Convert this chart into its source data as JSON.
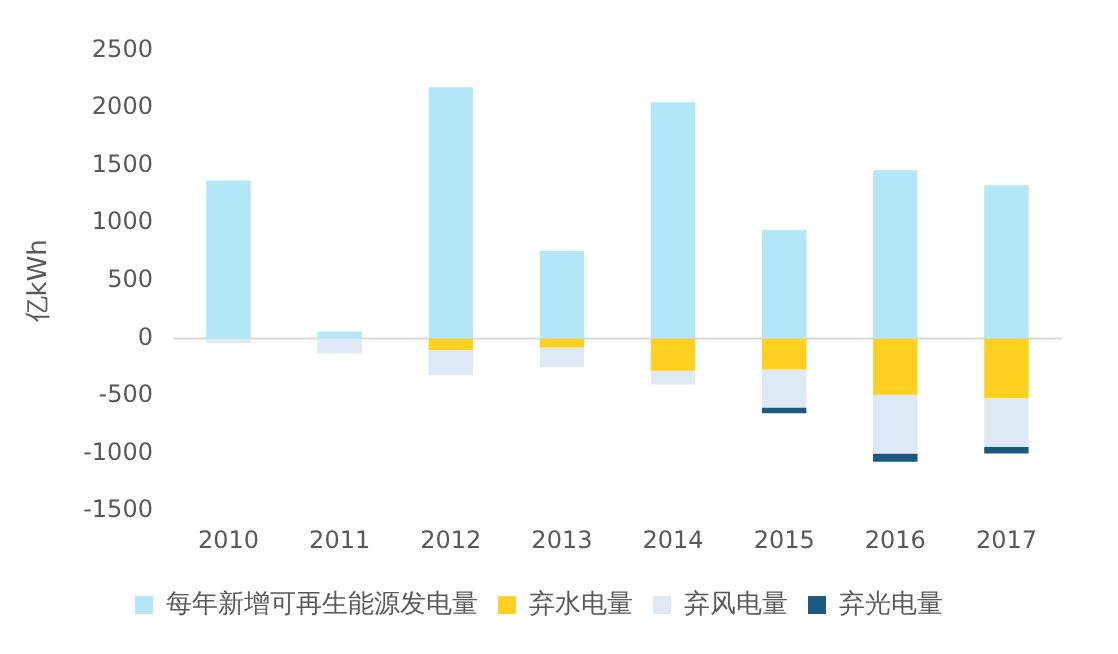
{
  "chart_data": {
    "type": "bar",
    "ylabel": "亿kWh",
    "stacked": true,
    "legend": "bottom",
    "grid": false,
    "ref_lines": [
      {
        "axis": "y",
        "value": 0,
        "color": "#d9d9d9"
      }
    ],
    "categories": [
      "2010",
      "2011",
      "2012",
      "2013",
      "2014",
      "2015",
      "2016",
      "2017"
    ],
    "ylim": [
      -1500,
      2500
    ],
    "yticks": [
      -1500,
      -1000,
      -500,
      0,
      500,
      1000,
      1500,
      2000,
      2500
    ],
    "series": [
      {
        "name": "每年新增可再生能源发电量",
        "color": "#b3e6f7",
        "values": [
          1370,
          60,
          2180,
          760,
          2050,
          940,
          1460,
          1330
        ]
      },
      {
        "name": "弃水电量",
        "color": "#fdd022",
        "values": [
          0,
          0,
          -100,
          -80,
          -280,
          -270,
          -490,
          -520
        ]
      },
      {
        "name": "弃风电量",
        "color": "#dfe8f5",
        "values": [
          -40,
          -130,
          -220,
          -170,
          -120,
          -330,
          -510,
          -420
        ]
      },
      {
        "name": "弃光电量",
        "color": "#1b5a7e",
        "values": [
          0,
          0,
          0,
          0,
          0,
          -50,
          -70,
          -60
        ]
      }
    ]
  }
}
